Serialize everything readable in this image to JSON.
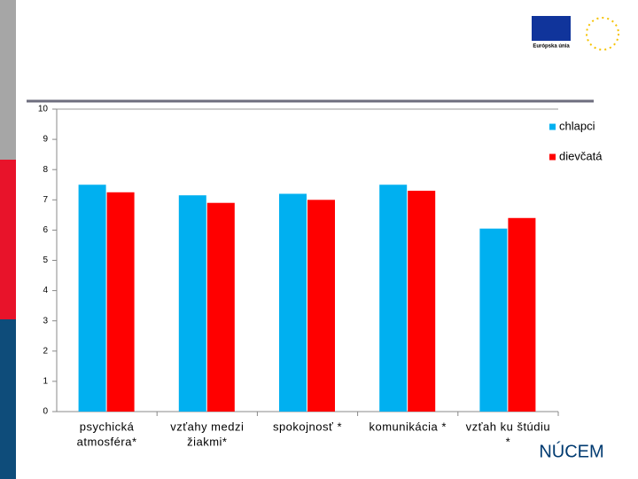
{
  "chart_data": {
    "type": "bar",
    "categories": [
      [
        "psychická",
        "atmosféra*"
      ],
      [
        "vzťahy medzi",
        "žiakmi*"
      ],
      [
        "spokojnosť *"
      ],
      [
        "komunikácia *"
      ],
      [
        "vzťah ku štúdiu",
        "*"
      ]
    ],
    "series": [
      {
        "name": "chlapci",
        "color": "#00b0f0",
        "values": [
          7.5,
          7.15,
          7.2,
          7.5,
          6.05
        ]
      },
      {
        "name": "dievčatá",
        "color": "#ff0000",
        "values": [
          7.25,
          6.9,
          7.0,
          7.3,
          6.4
        ]
      }
    ],
    "ylim": [
      0,
      10
    ],
    "yticks": [
      0,
      1,
      2,
      3,
      4,
      5,
      6,
      7,
      8,
      9,
      10
    ],
    "grid": false,
    "legend": "upper right"
  },
  "logos": {
    "eu": "Európska únia",
    "nucem": "NÚCEM"
  }
}
